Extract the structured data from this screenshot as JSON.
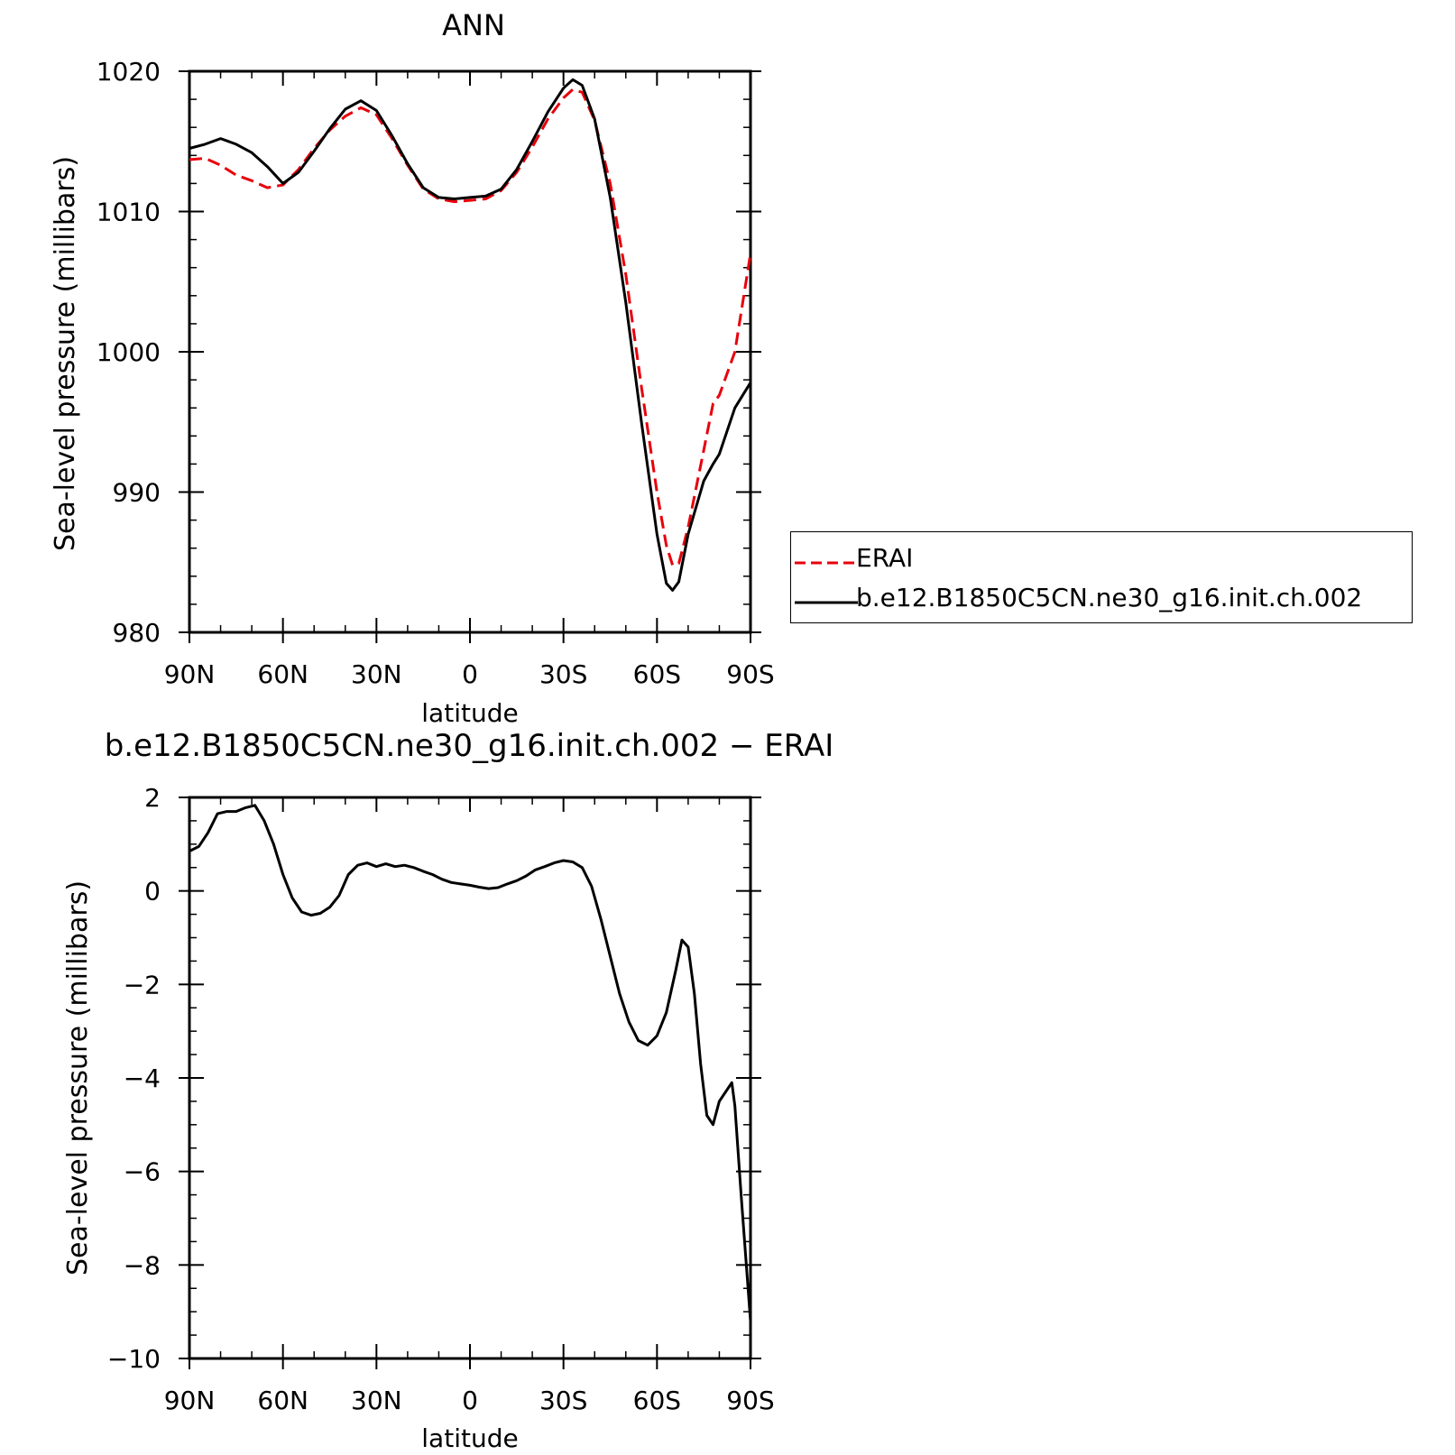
{
  "chart_data": [
    {
      "type": "line",
      "title": "ANN",
      "xlabel": "latitude",
      "ylabel": "Sea-level pressure (millibars)",
      "xlim": [
        90,
        -90
      ],
      "ylim": [
        980,
        1020
      ],
      "x_ticks": [
        90,
        60,
        30,
        0,
        -30,
        -60,
        -90
      ],
      "x_tick_labels": [
        "90N",
        "60N",
        "30N",
        "0",
        "30S",
        "60S",
        "90S"
      ],
      "y_ticks": [
        980,
        990,
        1000,
        1010,
        1020
      ],
      "y_tick_labels": [
        "980",
        "990",
        "1000",
        "1010",
        "1020"
      ],
      "grid": false,
      "legend_placement": "outside-right",
      "series": [
        {
          "name": "ERAI",
          "color": "#e8000b",
          "style": "dashed",
          "points": [
            [
              90,
              1013.7
            ],
            [
              85,
              1013.8
            ],
            [
              80,
              1013.3
            ],
            [
              75,
              1012.6
            ],
            [
              70,
              1012.2
            ],
            [
              65,
              1011.7
            ],
            [
              60,
              1011.9
            ],
            [
              55,
              1013.0
            ],
            [
              50,
              1014.5
            ],
            [
              45,
              1015.8
            ],
            [
              40,
              1016.8
            ],
            [
              35,
              1017.4
            ],
            [
              30,
              1016.9
            ],
            [
              25,
              1015.2
            ],
            [
              20,
              1013.3
            ],
            [
              15,
              1011.6
            ],
            [
              10,
              1010.9
            ],
            [
              5,
              1010.7
            ],
            [
              0,
              1010.8
            ],
            [
              -5,
              1010.9
            ],
            [
              -10,
              1011.5
            ],
            [
              -15,
              1012.8
            ],
            [
              -20,
              1014.6
            ],
            [
              -25,
              1016.6
            ],
            [
              -30,
              1018.1
            ],
            [
              -33,
              1018.7
            ],
            [
              -36,
              1018.5
            ],
            [
              -40,
              1016.5
            ],
            [
              -45,
              1012.0
            ],
            [
              -50,
              1005.5
            ],
            [
              -55,
              997.5
            ],
            [
              -60,
              990.0
            ],
            [
              -63,
              986.2
            ],
            [
              -65,
              984.8
            ],
            [
              -67,
              984.9
            ],
            [
              -70,
              987.5
            ],
            [
              -75,
              993.0
            ],
            [
              -78,
              996.3
            ],
            [
              -80,
              996.9
            ],
            [
              -85,
              1000.0
            ],
            [
              -90,
              1007.0
            ]
          ]
        },
        {
          "name": "b.e12.B1850C5CN.ne30_g16.init.ch.002",
          "color": "#000000",
          "style": "solid",
          "points": [
            [
              90,
              1014.5
            ],
            [
              85,
              1014.8
            ],
            [
              80,
              1015.2
            ],
            [
              75,
              1014.8
            ],
            [
              70,
              1014.2
            ],
            [
              65,
              1013.2
            ],
            [
              60,
              1012.0
            ],
            [
              55,
              1012.8
            ],
            [
              50,
              1014.3
            ],
            [
              45,
              1015.9
            ],
            [
              40,
              1017.3
            ],
            [
              35,
              1017.9
            ],
            [
              30,
              1017.2
            ],
            [
              25,
              1015.4
            ],
            [
              20,
              1013.4
            ],
            [
              15,
              1011.7
            ],
            [
              10,
              1011.0
            ],
            [
              5,
              1010.9
            ],
            [
              0,
              1011.0
            ],
            [
              -5,
              1011.1
            ],
            [
              -10,
              1011.6
            ],
            [
              -15,
              1013.0
            ],
            [
              -20,
              1015.0
            ],
            [
              -25,
              1017.1
            ],
            [
              -30,
              1018.8
            ],
            [
              -33,
              1019.4
            ],
            [
              -36,
              1019.0
            ],
            [
              -40,
              1016.6
            ],
            [
              -45,
              1011.0
            ],
            [
              -50,
              1003.5
            ],
            [
              -55,
              995.0
            ],
            [
              -60,
              987.0
            ],
            [
              -63,
              983.5
            ],
            [
              -65,
              983.0
            ],
            [
              -67,
              983.6
            ],
            [
              -70,
              987.0
            ],
            [
              -75,
              990.8
            ],
            [
              -78,
              992.0
            ],
            [
              -80,
              992.7
            ],
            [
              -85,
              996.0
            ],
            [
              -90,
              997.8
            ]
          ]
        }
      ]
    },
    {
      "type": "line",
      "title": "b.e12.B1850C5CN.ne30_g16.init.ch.002 − ERAI",
      "xlabel": "latitude",
      "ylabel": "Sea-level pressure (millibars)",
      "xlim": [
        90,
        -90
      ],
      "ylim": [
        -10,
        2
      ],
      "x_ticks": [
        90,
        60,
        30,
        0,
        -30,
        -60,
        -90
      ],
      "x_tick_labels": [
        "90N",
        "60N",
        "30N",
        "0",
        "30S",
        "60S",
        "90S"
      ],
      "y_ticks": [
        -10,
        -8,
        -6,
        -4,
        -2,
        0,
        2
      ],
      "y_tick_labels": [
        "−10",
        "−8",
        "−6",
        "−4",
        "−2",
        "0",
        "2"
      ],
      "grid": false,
      "series": [
        {
          "color": "#000000",
          "style": "solid",
          "points": [
            [
              90,
              0.85
            ],
            [
              87,
              0.95
            ],
            [
              84,
              1.25
            ],
            [
              81,
              1.65
            ],
            [
              78,
              1.7
            ],
            [
              75,
              1.7
            ],
            [
              72,
              1.78
            ],
            [
              69,
              1.83
            ],
            [
              66,
              1.5
            ],
            [
              63,
              1.0
            ],
            [
              60,
              0.35
            ],
            [
              57,
              -0.15
            ],
            [
              54,
              -0.45
            ],
            [
              51,
              -0.52
            ],
            [
              48,
              -0.48
            ],
            [
              45,
              -0.35
            ],
            [
              42,
              -0.1
            ],
            [
              39,
              0.35
            ],
            [
              36,
              0.55
            ],
            [
              33,
              0.6
            ],
            [
              30,
              0.52
            ],
            [
              27,
              0.58
            ],
            [
              24,
              0.52
            ],
            [
              21,
              0.55
            ],
            [
              18,
              0.5
            ],
            [
              15,
              0.42
            ],
            [
              12,
              0.35
            ],
            [
              9,
              0.25
            ],
            [
              6,
              0.18
            ],
            [
              3,
              0.15
            ],
            [
              0,
              0.12
            ],
            [
              -3,
              0.08
            ],
            [
              -6,
              0.05
            ],
            [
              -9,
              0.07
            ],
            [
              -12,
              0.15
            ],
            [
              -15,
              0.22
            ],
            [
              -18,
              0.32
            ],
            [
              -21,
              0.45
            ],
            [
              -24,
              0.52
            ],
            [
              -27,
              0.6
            ],
            [
              -30,
              0.65
            ],
            [
              -33,
              0.62
            ],
            [
              -36,
              0.5
            ],
            [
              -39,
              0.1
            ],
            [
              -42,
              -0.6
            ],
            [
              -45,
              -1.4
            ],
            [
              -48,
              -2.2
            ],
            [
              -51,
              -2.8
            ],
            [
              -54,
              -3.2
            ],
            [
              -57,
              -3.3
            ],
            [
              -60,
              -3.1
            ],
            [
              -63,
              -2.6
            ],
            [
              -66,
              -1.7
            ],
            [
              -68,
              -1.05
            ],
            [
              -70,
              -1.2
            ],
            [
              -72,
              -2.2
            ],
            [
              -74,
              -3.7
            ],
            [
              -76,
              -4.8
            ],
            [
              -78,
              -5.0
            ],
            [
              -80,
              -4.5
            ],
            [
              -82,
              -4.3
            ],
            [
              -84,
              -4.1
            ],
            [
              -85,
              -4.6
            ],
            [
              -87,
              -6.5
            ],
            [
              -90,
              -9.2
            ]
          ]
        }
      ]
    }
  ]
}
